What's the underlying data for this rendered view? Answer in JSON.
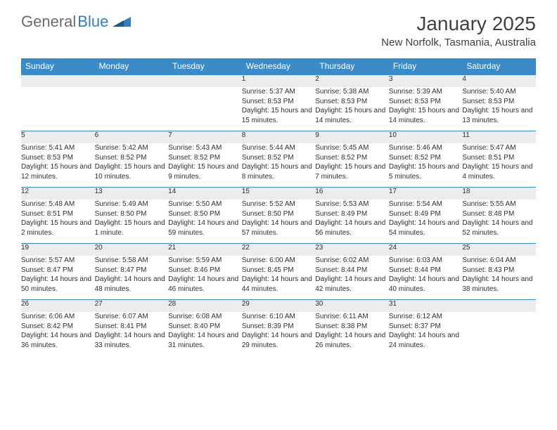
{
  "brand": {
    "part1": "General",
    "part2": "Blue"
  },
  "title": "January 2025",
  "location": "New Norfolk, Tasmania, Australia",
  "colors": {
    "header_bg": "#3b8bc9",
    "header_text": "#ffffff",
    "daynum_bg": "#ececec",
    "body_text": "#303030",
    "brand_gray": "#6b6b6b",
    "brand_blue": "#2f7fbf",
    "page_bg": "#ffffff",
    "separator": "#3b8bc9"
  },
  "fonts": {
    "title_size": 28,
    "location_size": 15,
    "dayhead_size": 12,
    "cell_size": 10
  },
  "dayHeaders": [
    "Sunday",
    "Monday",
    "Tuesday",
    "Wednesday",
    "Thursday",
    "Friday",
    "Saturday"
  ],
  "weeks": [
    [
      null,
      null,
      null,
      {
        "num": "1",
        "sunrise": "Sunrise: 5:37 AM",
        "sunset": "Sunset: 8:53 PM",
        "daylight": "Daylight: 15 hours and 15 minutes."
      },
      {
        "num": "2",
        "sunrise": "Sunrise: 5:38 AM",
        "sunset": "Sunset: 8:53 PM",
        "daylight": "Daylight: 15 hours and 14 minutes."
      },
      {
        "num": "3",
        "sunrise": "Sunrise: 5:39 AM",
        "sunset": "Sunset: 8:53 PM",
        "daylight": "Daylight: 15 hours and 14 minutes."
      },
      {
        "num": "4",
        "sunrise": "Sunrise: 5:40 AM",
        "sunset": "Sunset: 8:53 PM",
        "daylight": "Daylight: 15 hours and 13 minutes."
      }
    ],
    [
      {
        "num": "5",
        "sunrise": "Sunrise: 5:41 AM",
        "sunset": "Sunset: 8:53 PM",
        "daylight": "Daylight: 15 hours and 12 minutes."
      },
      {
        "num": "6",
        "sunrise": "Sunrise: 5:42 AM",
        "sunset": "Sunset: 8:52 PM",
        "daylight": "Daylight: 15 hours and 10 minutes."
      },
      {
        "num": "7",
        "sunrise": "Sunrise: 5:43 AM",
        "sunset": "Sunset: 8:52 PM",
        "daylight": "Daylight: 15 hours and 9 minutes."
      },
      {
        "num": "8",
        "sunrise": "Sunrise: 5:44 AM",
        "sunset": "Sunset: 8:52 PM",
        "daylight": "Daylight: 15 hours and 8 minutes."
      },
      {
        "num": "9",
        "sunrise": "Sunrise: 5:45 AM",
        "sunset": "Sunset: 8:52 PM",
        "daylight": "Daylight: 15 hours and 7 minutes."
      },
      {
        "num": "10",
        "sunrise": "Sunrise: 5:46 AM",
        "sunset": "Sunset: 8:52 PM",
        "daylight": "Daylight: 15 hours and 5 minutes."
      },
      {
        "num": "11",
        "sunrise": "Sunrise: 5:47 AM",
        "sunset": "Sunset: 8:51 PM",
        "daylight": "Daylight: 15 hours and 4 minutes."
      }
    ],
    [
      {
        "num": "12",
        "sunrise": "Sunrise: 5:48 AM",
        "sunset": "Sunset: 8:51 PM",
        "daylight": "Daylight: 15 hours and 2 minutes."
      },
      {
        "num": "13",
        "sunrise": "Sunrise: 5:49 AM",
        "sunset": "Sunset: 8:50 PM",
        "daylight": "Daylight: 15 hours and 1 minute."
      },
      {
        "num": "14",
        "sunrise": "Sunrise: 5:50 AM",
        "sunset": "Sunset: 8:50 PM",
        "daylight": "Daylight: 14 hours and 59 minutes."
      },
      {
        "num": "15",
        "sunrise": "Sunrise: 5:52 AM",
        "sunset": "Sunset: 8:50 PM",
        "daylight": "Daylight: 14 hours and 57 minutes."
      },
      {
        "num": "16",
        "sunrise": "Sunrise: 5:53 AM",
        "sunset": "Sunset: 8:49 PM",
        "daylight": "Daylight: 14 hours and 56 minutes."
      },
      {
        "num": "17",
        "sunrise": "Sunrise: 5:54 AM",
        "sunset": "Sunset: 8:49 PM",
        "daylight": "Daylight: 14 hours and 54 minutes."
      },
      {
        "num": "18",
        "sunrise": "Sunrise: 5:55 AM",
        "sunset": "Sunset: 8:48 PM",
        "daylight": "Daylight: 14 hours and 52 minutes."
      }
    ],
    [
      {
        "num": "19",
        "sunrise": "Sunrise: 5:57 AM",
        "sunset": "Sunset: 8:47 PM",
        "daylight": "Daylight: 14 hours and 50 minutes."
      },
      {
        "num": "20",
        "sunrise": "Sunrise: 5:58 AM",
        "sunset": "Sunset: 8:47 PM",
        "daylight": "Daylight: 14 hours and 48 minutes."
      },
      {
        "num": "21",
        "sunrise": "Sunrise: 5:59 AM",
        "sunset": "Sunset: 8:46 PM",
        "daylight": "Daylight: 14 hours and 46 minutes."
      },
      {
        "num": "22",
        "sunrise": "Sunrise: 6:00 AM",
        "sunset": "Sunset: 8:45 PM",
        "daylight": "Daylight: 14 hours and 44 minutes."
      },
      {
        "num": "23",
        "sunrise": "Sunrise: 6:02 AM",
        "sunset": "Sunset: 8:44 PM",
        "daylight": "Daylight: 14 hours and 42 minutes."
      },
      {
        "num": "24",
        "sunrise": "Sunrise: 6:03 AM",
        "sunset": "Sunset: 8:44 PM",
        "daylight": "Daylight: 14 hours and 40 minutes."
      },
      {
        "num": "25",
        "sunrise": "Sunrise: 6:04 AM",
        "sunset": "Sunset: 8:43 PM",
        "daylight": "Daylight: 14 hours and 38 minutes."
      }
    ],
    [
      {
        "num": "26",
        "sunrise": "Sunrise: 6:06 AM",
        "sunset": "Sunset: 8:42 PM",
        "daylight": "Daylight: 14 hours and 36 minutes."
      },
      {
        "num": "27",
        "sunrise": "Sunrise: 6:07 AM",
        "sunset": "Sunset: 8:41 PM",
        "daylight": "Daylight: 14 hours and 33 minutes."
      },
      {
        "num": "28",
        "sunrise": "Sunrise: 6:08 AM",
        "sunset": "Sunset: 8:40 PM",
        "daylight": "Daylight: 14 hours and 31 minutes."
      },
      {
        "num": "29",
        "sunrise": "Sunrise: 6:10 AM",
        "sunset": "Sunset: 8:39 PM",
        "daylight": "Daylight: 14 hours and 29 minutes."
      },
      {
        "num": "30",
        "sunrise": "Sunrise: 6:11 AM",
        "sunset": "Sunset: 8:38 PM",
        "daylight": "Daylight: 14 hours and 26 minutes."
      },
      {
        "num": "31",
        "sunrise": "Sunrise: 6:12 AM",
        "sunset": "Sunset: 8:37 PM",
        "daylight": "Daylight: 14 hours and 24 minutes."
      },
      null
    ]
  ]
}
